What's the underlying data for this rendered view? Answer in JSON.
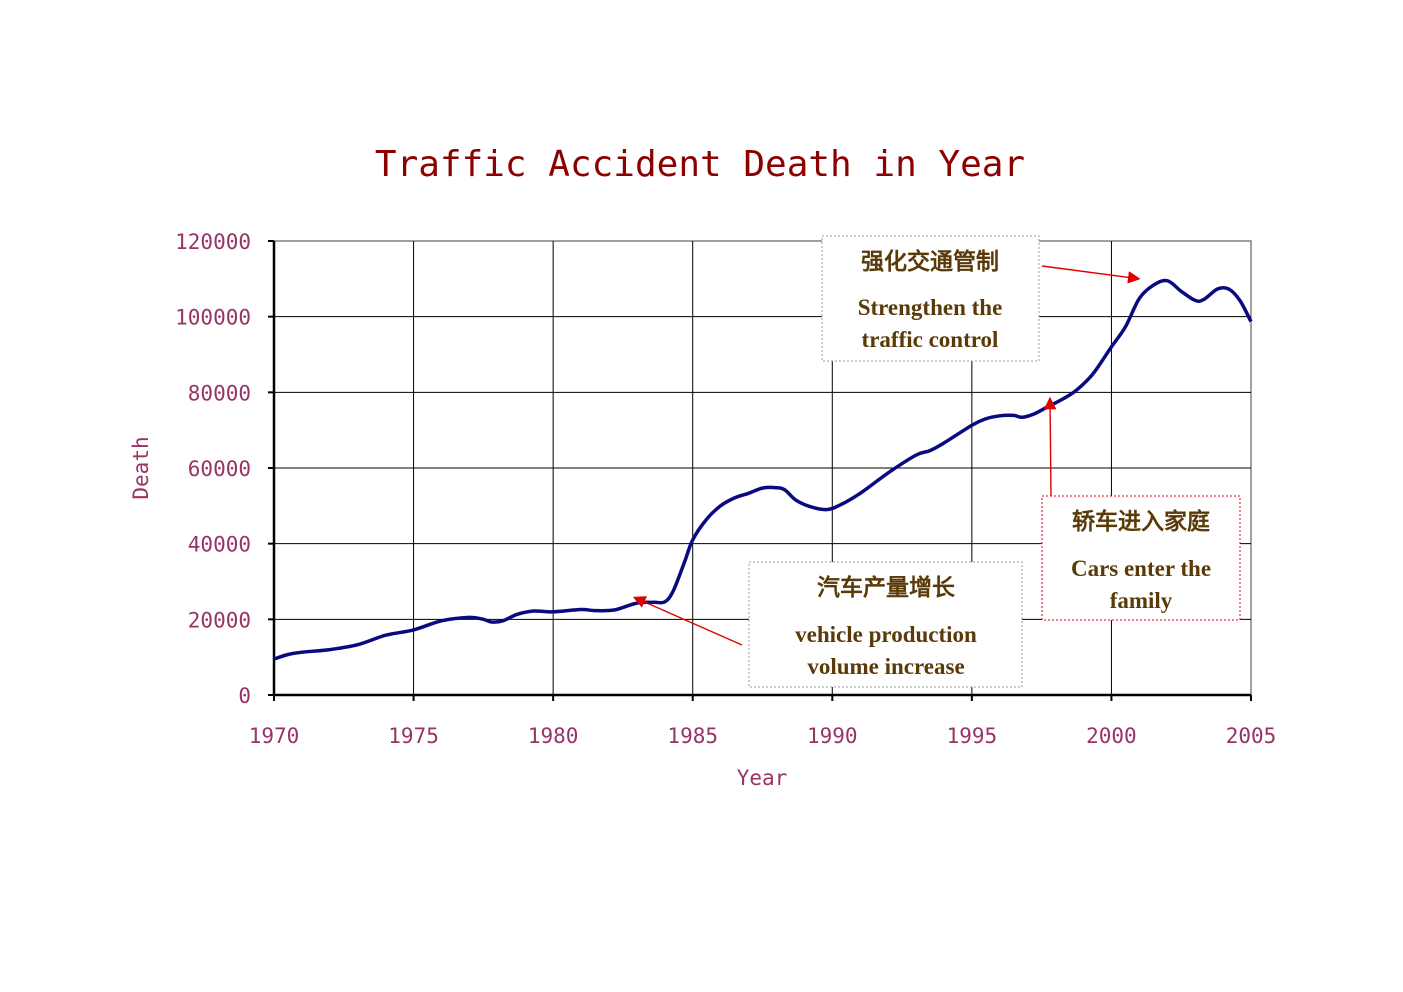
{
  "chart_data": {
    "type": "line",
    "title": "Traffic Accident Death in Year",
    "xlabel": "Year",
    "ylabel": "Death",
    "xlim": [
      1970,
      2005
    ],
    "ylim": [
      0,
      120000
    ],
    "x_ticks": [
      "1970",
      "1975",
      "1980",
      "1985",
      "1990",
      "1995",
      "2000",
      "2005"
    ],
    "y_ticks": [
      "0",
      "20000",
      "40000",
      "60000",
      "80000",
      "100000",
      "120000"
    ],
    "grid": true,
    "series": [
      {
        "color": "#0a0a80",
        "points": [
          [
            1970,
            9500
          ],
          [
            1970.5,
            10700
          ],
          [
            1971,
            11300
          ],
          [
            1972,
            12000
          ],
          [
            1973,
            13300
          ],
          [
            1974,
            15800
          ],
          [
            1975,
            17200
          ],
          [
            1976,
            19600
          ],
          [
            1977,
            20500
          ],
          [
            1977.5,
            20000
          ],
          [
            1977.8,
            19300
          ],
          [
            1978.2,
            19600
          ],
          [
            1978.7,
            21300
          ],
          [
            1979.3,
            22200
          ],
          [
            1980,
            22000
          ],
          [
            1981,
            22600
          ],
          [
            1981.5,
            22300
          ],
          [
            1982.2,
            22500
          ],
          [
            1983,
            24300
          ],
          [
            1983.6,
            24500
          ],
          [
            1984,
            24600
          ],
          [
            1984.3,
            27500
          ],
          [
            1984.7,
            35000
          ],
          [
            1985,
            41000
          ],
          [
            1985.5,
            46500
          ],
          [
            1986,
            50000
          ],
          [
            1986.5,
            52100
          ],
          [
            1987,
            53300
          ],
          [
            1987.5,
            54700
          ],
          [
            1988,
            54800
          ],
          [
            1988.3,
            54200
          ],
          [
            1988.7,
            51500
          ],
          [
            1989.2,
            49800
          ],
          [
            1989.8,
            49000
          ],
          [
            1990.3,
            50300
          ],
          [
            1991,
            53300
          ],
          [
            1992,
            58700
          ],
          [
            1993,
            63400
          ],
          [
            1993.5,
            64600
          ],
          [
            1994,
            66600
          ],
          [
            1995,
            71300
          ],
          [
            1995.5,
            73000
          ],
          [
            1996,
            73800
          ],
          [
            1996.5,
            73900
          ],
          [
            1996.8,
            73400
          ],
          [
            1997.2,
            74200
          ],
          [
            1997.7,
            76100
          ],
          [
            1998.2,
            78000
          ],
          [
            1998.7,
            80300
          ],
          [
            1999.2,
            83700
          ],
          [
            1999.5,
            86500
          ],
          [
            2000,
            92000
          ],
          [
            2000.5,
            97300
          ],
          [
            2001,
            104800
          ],
          [
            2001.5,
            108300
          ],
          [
            2002,
            109500
          ],
          [
            2002.5,
            106700
          ],
          [
            2003,
            104300
          ],
          [
            2003.3,
            104500
          ],
          [
            2003.8,
            107300
          ],
          [
            2004.2,
            107300
          ],
          [
            2004.6,
            104300
          ],
          [
            2005,
            98700
          ]
        ]
      }
    ],
    "annotations": [
      {
        "zh": "强化交通管制",
        "en_line1": "Strengthen the",
        "en_line2": "traffic control",
        "border": "#9a9a9a",
        "arrow_to": [
          2001,
          110000
        ]
      },
      {
        "zh": "轿车进入家庭",
        "en_line1": "Cars enter the",
        "en_line2": "family",
        "border": "#e2001a",
        "arrow_to": [
          1997.8,
          78500
        ]
      },
      {
        "zh": "汽车产量增长",
        "en_line1": "vehicle production",
        "en_line2": "volume increase",
        "border": "#9a9a9a",
        "arrow_to": [
          1982.9,
          25800
        ]
      }
    ],
    "colors": {
      "title": "#8b0000",
      "axis_text": "#993366",
      "annotation_text": "#5a3a08",
      "arrow": "#e00000",
      "line": "#0a0a80"
    }
  }
}
